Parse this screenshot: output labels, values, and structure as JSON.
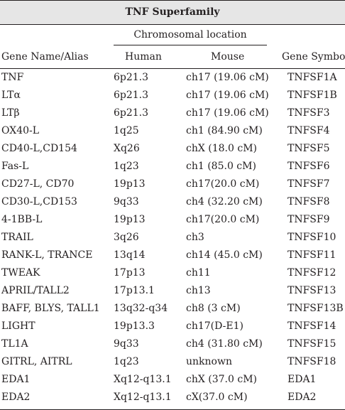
{
  "title": "TNF Superfamily",
  "header": {
    "chromosomal_location": "Chromosomal location",
    "gene_name": "Gene Name/Alias",
    "human": "Human",
    "mouse": "Mouse",
    "gene_symbol": "Gene Symbol"
  },
  "rows": [
    {
      "gene": "TNF",
      "human": "6p21.3",
      "mouse": "ch17 (19.06 cM)",
      "symbol": "TNFSF1A"
    },
    {
      "gene": "LTα",
      "human": "6p21.3",
      "mouse": "ch17 (19.06 cM)",
      "symbol": "TNFSF1B"
    },
    {
      "gene": "LTβ",
      "human": "6p21.3",
      "mouse": "ch17 (19.06 cM)",
      "symbol": "TNFSF3"
    },
    {
      "gene": "OX40-L",
      "human": "1q25",
      "mouse": "ch1 (84.90 cM)",
      "symbol": "TNFSF4"
    },
    {
      "gene": "CD40-L,CD154",
      "human": "Xq26",
      "mouse": "chX (18.0 cM)",
      "symbol": "TNFSF5"
    },
    {
      "gene": "Fas-L",
      "human": "1q23",
      "mouse": "ch1 (85.0 cM)",
      "symbol": "TNFSF6"
    },
    {
      "gene": "CD27-L, CD70",
      "human": "19p13",
      "mouse": "ch17(20.0 cM)",
      "symbol": "TNFSF7"
    },
    {
      "gene": "CD30-L,CD153",
      "human": "9q33",
      "mouse": "ch4 (32.20 cM)",
      "symbol": "TNFSF8"
    },
    {
      "gene": "4-1BB-L",
      "human": "19p13",
      "mouse": "ch17(20.0 cM)",
      "symbol": "TNFSF9"
    },
    {
      "gene": "TRAIL",
      "human": "3q26",
      "mouse": "ch3",
      "symbol": "TNFSF10"
    },
    {
      "gene": "RANK-L, TRANCE",
      "human": "13q14",
      "mouse": "ch14 (45.0 cM)",
      "symbol": "TNFSF11"
    },
    {
      "gene": "TWEAK",
      "human": "17p13",
      "mouse": "ch11",
      "symbol": "TNFSF12"
    },
    {
      "gene": "APRIL/TALL2",
      "human": "17p13.1",
      "mouse": "ch13",
      "symbol": "TNFSF13"
    },
    {
      "gene": "BAFF, BLYS, TALL1",
      "human": "13q32-q34",
      "mouse": "ch8 (3 cM)",
      "symbol": "TNFSF13B"
    },
    {
      "gene": "LIGHT",
      "human": "19p13.3",
      "mouse": "ch17(D-E1)",
      "symbol": "TNFSF14"
    },
    {
      "gene": "TL1A",
      "human": "9q33",
      "mouse": "ch4 (31.80 cM)",
      "symbol": "TNFSF15"
    },
    {
      "gene": "GITRL, AITRL",
      "human": "1q23",
      "mouse": "unknown",
      "symbol": "TNFSF18"
    },
    {
      "gene": "EDA1",
      "human": "Xq12-q13.1",
      "mouse": "chX (37.0 cM)",
      "symbol": "EDA1"
    },
    {
      "gene": "EDA2",
      "human": "Xq12-q13.1",
      "mouse": "cX(37.0 cM)",
      "symbol": "EDA2"
    }
  ]
}
